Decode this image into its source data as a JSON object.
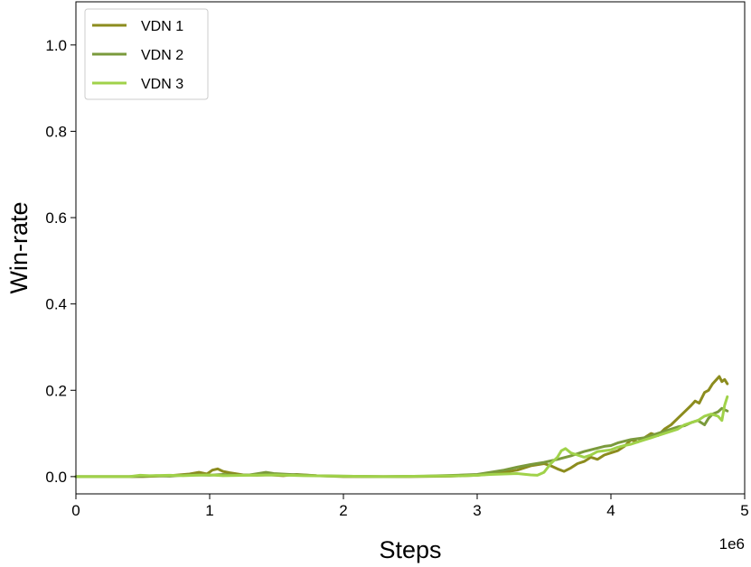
{
  "chart_data": {
    "type": "line",
    "xlabel": "Steps",
    "ylabel": "Win-rate",
    "x_offset_label": "1e6",
    "xlim": [
      0,
      5
    ],
    "ylim": [
      -0.04,
      1.1
    ],
    "x_ticks": [
      0,
      1,
      2,
      3,
      4,
      5
    ],
    "x_tick_labels": [
      "0",
      "1",
      "2",
      "3",
      "4",
      "5"
    ],
    "y_ticks": [
      0.0,
      0.2,
      0.4,
      0.6,
      0.8,
      1.0
    ],
    "y_tick_labels": [
      "0.0",
      "0.2",
      "0.4",
      "0.6",
      "0.8",
      "1.0"
    ],
    "grid": false,
    "legend_position": "top-left",
    "series": [
      {
        "name": "VDN 1",
        "color": "#8c8c1e",
        "points": [
          [
            0,
            0
          ],
          [
            0.4,
            0
          ],
          [
            0.5,
            0
          ],
          [
            0.7,
            0.002
          ],
          [
            0.85,
            0.006
          ],
          [
            0.92,
            0.01
          ],
          [
            0.98,
            0.006
          ],
          [
            1.02,
            0.015
          ],
          [
            1.06,
            0.018
          ],
          [
            1.1,
            0.012
          ],
          [
            1.15,
            0.009
          ],
          [
            1.25,
            0.004
          ],
          [
            1.35,
            0.003
          ],
          [
            1.45,
            0.004
          ],
          [
            1.55,
            0.002
          ],
          [
            1.65,
            0.005
          ],
          [
            1.8,
            0.002
          ],
          [
            2.0,
            0
          ],
          [
            2.2,
            0
          ],
          [
            2.5,
            0
          ],
          [
            2.8,
            0.001
          ],
          [
            3.0,
            0.003
          ],
          [
            3.1,
            0.006
          ],
          [
            3.2,
            0.01
          ],
          [
            3.3,
            0.015
          ],
          [
            3.4,
            0.025
          ],
          [
            3.5,
            0.03
          ],
          [
            3.55,
            0.025
          ],
          [
            3.6,
            0.018
          ],
          [
            3.65,
            0.012
          ],
          [
            3.7,
            0.02
          ],
          [
            3.75,
            0.03
          ],
          [
            3.8,
            0.035
          ],
          [
            3.85,
            0.045
          ],
          [
            3.9,
            0.04
          ],
          [
            3.95,
            0.05
          ],
          [
            4.0,
            0.055
          ],
          [
            4.05,
            0.06
          ],
          [
            4.1,
            0.07
          ],
          [
            4.15,
            0.085
          ],
          [
            4.2,
            0.08
          ],
          [
            4.25,
            0.09
          ],
          [
            4.3,
            0.1
          ],
          [
            4.35,
            0.095
          ],
          [
            4.4,
            0.11
          ],
          [
            4.45,
            0.12
          ],
          [
            4.5,
            0.135
          ],
          [
            4.55,
            0.15
          ],
          [
            4.6,
            0.165
          ],
          [
            4.63,
            0.175
          ],
          [
            4.66,
            0.17
          ],
          [
            4.7,
            0.195
          ],
          [
            4.73,
            0.2
          ],
          [
            4.76,
            0.215
          ],
          [
            4.79,
            0.225
          ],
          [
            4.81,
            0.232
          ],
          [
            4.83,
            0.22
          ],
          [
            4.85,
            0.225
          ],
          [
            4.87,
            0.215
          ]
        ]
      },
      {
        "name": "VDN 2",
        "color": "#7a9a3c",
        "points": [
          [
            0,
            0
          ],
          [
            0.4,
            0
          ],
          [
            0.5,
            0.001
          ],
          [
            0.6,
            0.002
          ],
          [
            0.7,
            0.001
          ],
          [
            0.8,
            0.003
          ],
          [
            0.9,
            0.004
          ],
          [
            1.0,
            0.003
          ],
          [
            1.1,
            0.005
          ],
          [
            1.2,
            0.003
          ],
          [
            1.3,
            0.004
          ],
          [
            1.38,
            0.008
          ],
          [
            1.42,
            0.01
          ],
          [
            1.48,
            0.007
          ],
          [
            1.6,
            0.005
          ],
          [
            1.8,
            0.002
          ],
          [
            2.0,
            0.001
          ],
          [
            2.3,
            0
          ],
          [
            2.6,
            0.001
          ],
          [
            2.85,
            0.003
          ],
          [
            3.0,
            0.005
          ],
          [
            3.1,
            0.01
          ],
          [
            3.2,
            0.015
          ],
          [
            3.3,
            0.022
          ],
          [
            3.4,
            0.028
          ],
          [
            3.5,
            0.033
          ],
          [
            3.6,
            0.04
          ],
          [
            3.7,
            0.048
          ],
          [
            3.8,
            0.058
          ],
          [
            3.9,
            0.066
          ],
          [
            3.95,
            0.07
          ],
          [
            4.0,
            0.072
          ],
          [
            4.05,
            0.078
          ],
          [
            4.1,
            0.082
          ],
          [
            4.15,
            0.086
          ],
          [
            4.2,
            0.088
          ],
          [
            4.25,
            0.09
          ],
          [
            4.3,
            0.095
          ],
          [
            4.35,
            0.1
          ],
          [
            4.4,
            0.105
          ],
          [
            4.45,
            0.11
          ],
          [
            4.5,
            0.115
          ],
          [
            4.55,
            0.118
          ],
          [
            4.6,
            0.125
          ],
          [
            4.65,
            0.13
          ],
          [
            4.7,
            0.12
          ],
          [
            4.73,
            0.135
          ],
          [
            4.76,
            0.145
          ],
          [
            4.8,
            0.15
          ],
          [
            4.83,
            0.158
          ],
          [
            4.85,
            0.155
          ],
          [
            4.87,
            0.152
          ]
        ]
      },
      {
        "name": "VDN 3",
        "color": "#a0d24a",
        "points": [
          [
            0,
            0
          ],
          [
            0.4,
            0
          ],
          [
            0.48,
            0.003
          ],
          [
            0.55,
            0.002
          ],
          [
            0.7,
            0.003
          ],
          [
            0.8,
            0.002
          ],
          [
            0.9,
            0.003
          ],
          [
            1.0,
            0.004
          ],
          [
            1.1,
            0.002
          ],
          [
            1.3,
            0.003
          ],
          [
            1.5,
            0.004
          ],
          [
            1.7,
            0.002
          ],
          [
            2.0,
            0.001
          ],
          [
            2.3,
            0
          ],
          [
            2.6,
            0.001
          ],
          [
            2.9,
            0.002
          ],
          [
            3.0,
            0.003
          ],
          [
            3.1,
            0.005
          ],
          [
            3.2,
            0.006
          ],
          [
            3.3,
            0.007
          ],
          [
            3.4,
            0.004
          ],
          [
            3.45,
            0.003
          ],
          [
            3.5,
            0.01
          ],
          [
            3.55,
            0.03
          ],
          [
            3.6,
            0.045
          ],
          [
            3.63,
            0.06
          ],
          [
            3.66,
            0.065
          ],
          [
            3.7,
            0.055
          ],
          [
            3.75,
            0.05
          ],
          [
            3.8,
            0.045
          ],
          [
            3.85,
            0.05
          ],
          [
            3.9,
            0.058
          ],
          [
            3.95,
            0.06
          ],
          [
            4.0,
            0.062
          ],
          [
            4.05,
            0.068
          ],
          [
            4.1,
            0.072
          ],
          [
            4.15,
            0.075
          ],
          [
            4.2,
            0.08
          ],
          [
            4.25,
            0.085
          ],
          [
            4.3,
            0.09
          ],
          [
            4.35,
            0.095
          ],
          [
            4.4,
            0.1
          ],
          [
            4.45,
            0.105
          ],
          [
            4.5,
            0.11
          ],
          [
            4.55,
            0.12
          ],
          [
            4.6,
            0.125
          ],
          [
            4.65,
            0.13
          ],
          [
            4.7,
            0.14
          ],
          [
            4.75,
            0.145
          ],
          [
            4.8,
            0.14
          ],
          [
            4.83,
            0.13
          ],
          [
            4.85,
            0.165
          ],
          [
            4.87,
            0.185
          ]
        ]
      }
    ]
  }
}
